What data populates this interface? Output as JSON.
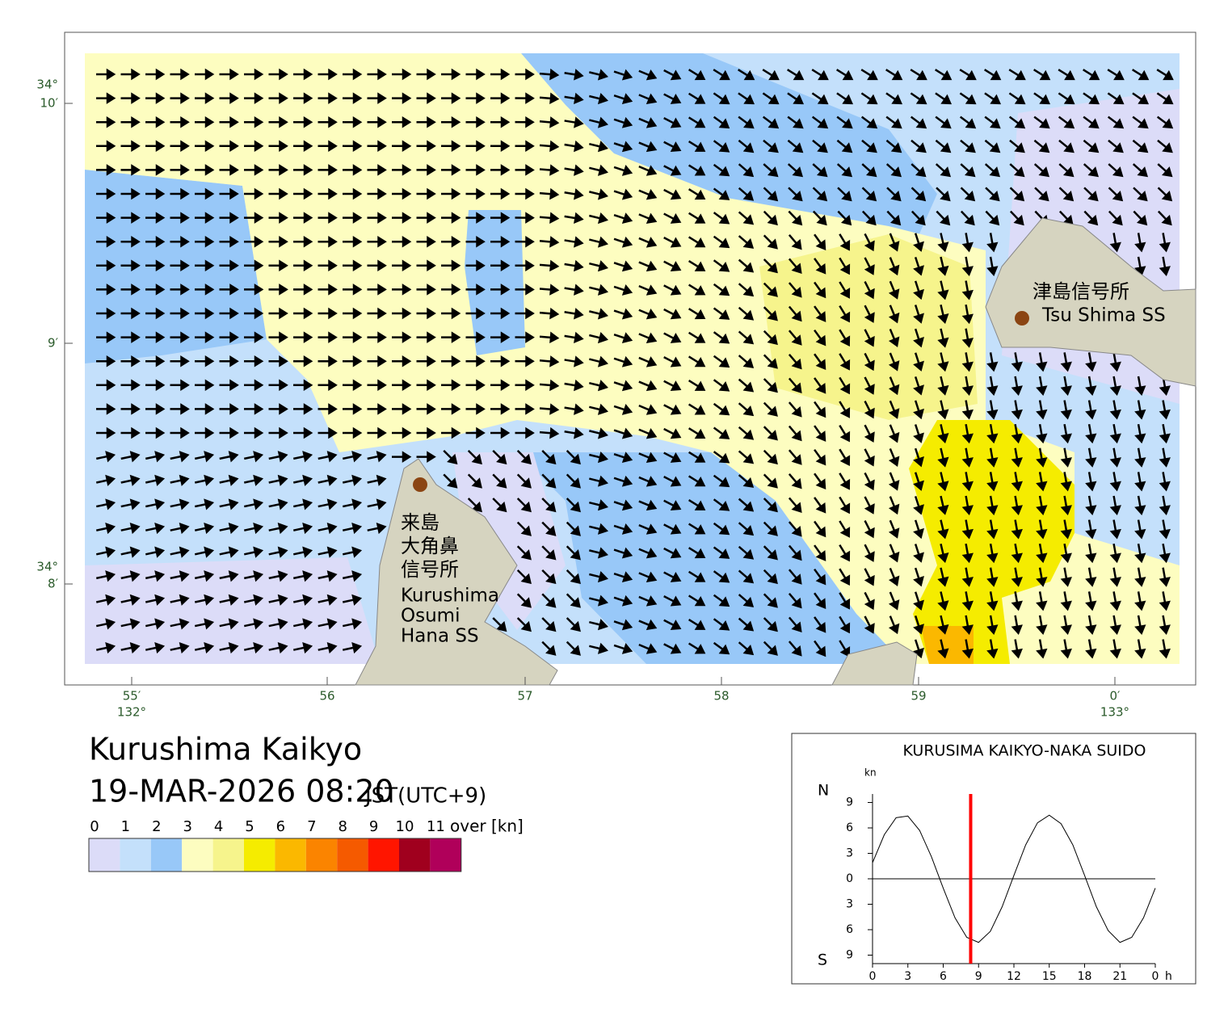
{
  "map": {
    "title": "Kurushima Kaikyo",
    "datetime": "19-MAR-2026 08:20",
    "timezone": "JST(UTC+9)",
    "lat_labels": [
      [
        "34°",
        "10′"
      ],
      [
        "9′"
      ],
      [
        "34°",
        "8′"
      ]
    ],
    "lon_labels": [
      [
        "55′",
        "132°"
      ],
      [
        "56"
      ],
      [
        "57"
      ],
      [
        "58"
      ],
      [
        "59"
      ],
      [
        "0′",
        "133°"
      ]
    ],
    "places": [
      {
        "name_ja": [
          "津島信号所"
        ],
        "name_en": [
          "Tsu Shima SS"
        ]
      },
      {
        "name_ja": [
          "来島",
          "大角鼻",
          "信号所"
        ],
        "name_en": [
          "Kurushima",
          "Osumi",
          "Hana SS"
        ]
      }
    ]
  },
  "legend": {
    "labels": [
      "0",
      "1",
      "2",
      "3",
      "4",
      "5",
      "6",
      "7",
      "8",
      "9",
      "10",
      "11"
    ],
    "unit": "over [kn]",
    "colors": [
      "#dcdcf8",
      "#c4e0fb",
      "#98c8f8",
      "#fdfdc0",
      "#f6f48c",
      "#f5ec00",
      "#fbb800",
      "#fb8400",
      "#f55a00",
      "#ff1500",
      "#a0001e",
      "#b0005a"
    ]
  },
  "chart_data": {
    "type": "line",
    "title": "KURUSIMA KAIKYO-NAKA SUIDO",
    "y_unit": "kn",
    "north_label": "N",
    "south_label": "S",
    "x_unit": "h",
    "x": [
      0,
      1,
      2,
      3,
      4,
      5,
      6,
      7,
      8,
      9,
      10,
      11,
      12,
      13,
      14,
      15,
      16,
      17,
      18,
      19,
      20,
      21,
      22,
      23,
      24
    ],
    "series": [
      {
        "color": "#000000",
        "values": [
          1.9,
          5.2,
          7.2,
          7.4,
          5.7,
          2.6,
          -1.1,
          -4.6,
          -6.9,
          -7.5,
          -6.2,
          -3.3,
          0.4,
          4.0,
          6.6,
          7.5,
          6.5,
          4.0,
          0.4,
          -3.3,
          -6.1,
          -7.5,
          -6.9,
          -4.6,
          -1.1
        ]
      }
    ],
    "xlim": [
      0,
      24
    ],
    "xticks": [
      0,
      3,
      6,
      9,
      12,
      15,
      18,
      21,
      {
        "value": 24,
        "label": "0"
      }
    ],
    "ylim": [
      -10,
      10
    ],
    "yticks": [
      9,
      6,
      3,
      0,
      {
        "value": -3,
        "label": "3"
      },
      {
        "value": -6,
        "label": "6"
      },
      {
        "value": -9,
        "label": "9"
      }
    ],
    "current_time": 8.33,
    "current_color": "#ff0000"
  }
}
